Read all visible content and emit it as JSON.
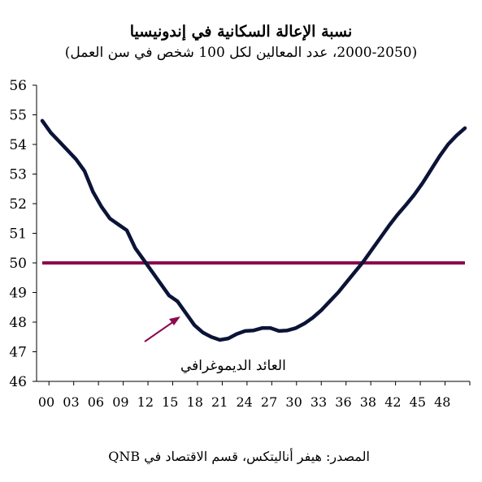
{
  "chart_data": {
    "type": "line",
    "title": "نسبة الإعالة السكانية في إندونيسيا",
    "subtitle": "(2000-2050، عدد المعالين لكل 100 شخص في سن العمل)",
    "source": "المصدر: هيفر أناليتكس، قسم الاقتصاد في QNB",
    "annotation": "العائد الديموغرافي",
    "ylim": [
      46,
      56
    ],
    "yticks": [
      46,
      47,
      48,
      49,
      50,
      51,
      52,
      53,
      54,
      55,
      56
    ],
    "xlim": [
      0,
      50
    ],
    "xtick_labels": [
      "00",
      "03",
      "06",
      "09",
      "12",
      "15",
      "18",
      "21",
      "24",
      "27",
      "30",
      "33",
      "36",
      "38",
      "42",
      "45",
      "48"
    ],
    "reference_line": {
      "value": 50,
      "color": "#8b0a50"
    },
    "series": [
      {
        "color": "#0b1437",
        "x": [
          0,
          1,
          2,
          3,
          4,
          5,
          6,
          7,
          8,
          9,
          10,
          11,
          12,
          13,
          14,
          15,
          16,
          17,
          18,
          19,
          20,
          21,
          22,
          23,
          24,
          25,
          26,
          27,
          28,
          29,
          30,
          31,
          32,
          33,
          34,
          35,
          36,
          37,
          38,
          39,
          40,
          41,
          42,
          43,
          44,
          45,
          46,
          47,
          48,
          49,
          50
        ],
        "y": [
          54.8,
          54.4,
          54.1,
          53.8,
          53.5,
          53.1,
          52.4,
          51.9,
          51.5,
          51.3,
          51.1,
          50.5,
          50.1,
          49.7,
          49.3,
          48.9,
          48.7,
          48.3,
          47.9,
          47.65,
          47.5,
          47.4,
          47.45,
          47.6,
          47.7,
          47.72,
          47.8,
          47.8,
          47.7,
          47.72,
          47.8,
          47.95,
          48.15,
          48.4,
          48.7,
          49.0,
          49.35,
          49.7,
          50.05,
          50.45,
          50.85,
          51.25,
          51.62,
          51.95,
          52.3,
          52.7,
          53.15,
          53.6,
          54.0,
          54.3,
          54.55
        ]
      }
    ]
  }
}
